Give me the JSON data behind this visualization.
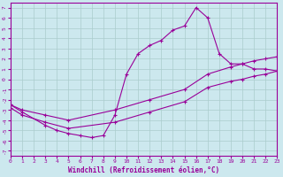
{
  "bg_color": "#cce8ee",
  "grid_color": "#aacccc",
  "line_color": "#990099",
  "xlabel": "Windchill (Refroidissement éolien,°C)",
  "xlim": [
    0,
    23
  ],
  "ylim": [
    -7.5,
    7.5
  ],
  "yticks": [
    -7,
    -6,
    -5,
    -4,
    -3,
    -2,
    -1,
    0,
    1,
    2,
    3,
    4,
    5,
    6,
    7
  ],
  "xticks": [
    0,
    1,
    2,
    3,
    4,
    5,
    6,
    7,
    8,
    9,
    10,
    11,
    12,
    13,
    14,
    15,
    16,
    17,
    18,
    19,
    20,
    21,
    22,
    23
  ],
  "line1_x": [
    0,
    1,
    3,
    4,
    5,
    6,
    7,
    8,
    9,
    10,
    11,
    12,
    13,
    14,
    15,
    16,
    17,
    18,
    19,
    20,
    21,
    22,
    23
  ],
  "line1_y": [
    -2.5,
    -3.2,
    -4.5,
    -5.0,
    -5.3,
    -5.5,
    -5.7,
    -5.5,
    -3.5,
    0.5,
    2.5,
    3.3,
    3.8,
    4.8,
    5.2,
    7.0,
    6.0,
    2.5,
    1.5,
    1.5,
    1.0,
    1.0,
    0.8
  ],
  "line2_x": [
    0,
    1,
    3,
    5,
    9,
    12,
    15,
    17,
    19,
    20,
    21,
    22,
    23
  ],
  "line2_y": [
    -2.5,
    -3.0,
    -3.5,
    -4.0,
    -3.0,
    -2.0,
    -1.0,
    0.5,
    1.2,
    1.5,
    1.8,
    2.0,
    2.2
  ],
  "line3_x": [
    0,
    1,
    3,
    5,
    9,
    12,
    15,
    17,
    19,
    20,
    21,
    22,
    23
  ],
  "line3_y": [
    -2.8,
    -3.5,
    -4.2,
    -4.8,
    -4.2,
    -3.2,
    -2.2,
    -0.8,
    -0.2,
    0.0,
    0.3,
    0.5,
    0.8
  ]
}
